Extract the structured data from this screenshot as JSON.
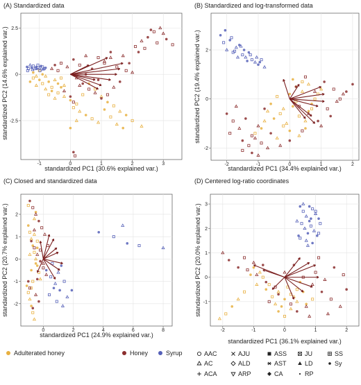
{
  "chart_data": [
    {
      "type": "scatter",
      "title": "(A) Standardized data",
      "xlabel": "standardized PC1 (30.6% explained var.)",
      "ylabel": "standardized PC2 (14.6% explained var.)",
      "xlim": [
        -1.6,
        3.6
      ],
      "ylim": [
        -4.6,
        3.3
      ],
      "xticks": [
        -1,
        0,
        1,
        2,
        3
      ],
      "yticks": [
        -2.5,
        0.0,
        2.5
      ],
      "grid": true,
      "series": [
        {
          "name": "Adulterated honey",
          "color": "#E8B040",
          "x": [
            -1.3,
            -1.2,
            -1.1,
            -1.0,
            -0.9,
            -0.8,
            -0.7,
            -0.6,
            -0.5,
            -0.4,
            -0.3,
            -0.2,
            -1.2,
            -1.0,
            -0.8,
            -0.6,
            -0.4,
            -0.2,
            0.0,
            0.2,
            -1.1,
            -0.9,
            -0.7,
            -0.5,
            -0.3,
            0.1,
            0.3,
            0.5,
            0.7,
            0.9,
            1.1,
            1.3,
            1.5,
            1.7,
            2.0,
            2.3,
            0.6,
            0.8,
            1.0,
            1.2,
            1.4,
            1.6,
            1.8,
            0.4,
            0.2,
            0.0
          ],
          "y": [
            -0.4,
            -0.2,
            -0.6,
            -0.3,
            -0.5,
            -0.1,
            -0.4,
            -0.7,
            -0.3,
            -0.5,
            -0.2,
            -0.6,
            0.1,
            0.2,
            -0.8,
            -0.9,
            -1.0,
            -1.2,
            -1.4,
            -1.6,
            -0.1,
            0.0,
            -1.1,
            -1.3,
            -0.7,
            -1.8,
            -2.0,
            -2.2,
            -2.4,
            -2.6,
            -1.9,
            -2.3,
            -2.7,
            -2.9,
            -2.5,
            -2.8,
            -0.5,
            -0.8,
            -1.2,
            -1.5,
            -1.7,
            -2.0,
            -2.2,
            -1.1,
            -2.5,
            -2.9
          ]
        },
        {
          "name": "Honey",
          "color": "#8B2E2E",
          "x": [
            -0.5,
            -0.3,
            -0.1,
            0.1,
            0.3,
            0.5,
            0.7,
            0.9,
            1.1,
            1.3,
            1.5,
            1.7,
            1.9,
            2.1,
            2.3,
            2.5,
            2.7,
            2.9,
            3.1,
            3.3,
            0.2,
            0.4,
            0.6,
            0.8,
            1.0,
            1.2,
            1.4,
            1.6,
            1.8,
            2.0,
            2.2,
            2.4,
            -0.2,
            0.0,
            0.1,
            0.3,
            0.5,
            -0.4,
            -0.6,
            0.9,
            1.1,
            1.3,
            2.6,
            2.8,
            3.0,
            0.1,
            0.15
          ],
          "y": [
            0.5,
            0.6,
            0.4,
            0.8,
            0.5,
            1.0,
            0.3,
            0.9,
            0.7,
            1.2,
            0.4,
            1.0,
            0.6,
            1.5,
            1.8,
            2.0,
            2.3,
            2.5,
            1.9,
            1.6,
            -0.2,
            -0.5,
            -0.8,
            -1.0,
            -1.3,
            -1.1,
            -0.7,
            -0.4,
            0.2,
            0.1,
            1.2,
            1.4,
            -0.9,
            -1.2,
            -1.5,
            -0.6,
            0.0,
            0.2,
            0.3,
            -0.3,
            0.6,
            0.9,
            2.4,
            1.7,
            2.2,
            -4.2,
            -4.4
          ]
        },
        {
          "name": "Syrup",
          "color": "#5560B8",
          "x": [
            -1.4,
            -1.35,
            -1.3,
            -1.25,
            -1.2,
            -1.15,
            -1.1,
            -1.05,
            -1.0,
            -0.95,
            -0.9,
            -0.85,
            -0.8,
            -1.38,
            -1.22,
            -1.08,
            -0.98,
            -0.88
          ],
          "y": [
            0.4,
            0.3,
            0.5,
            0.35,
            0.45,
            0.3,
            0.4,
            0.5,
            0.35,
            0.45,
            0.4,
            0.3,
            0.35,
            0.2,
            0.25,
            0.3,
            0.2,
            0.28
          ]
        }
      ],
      "loadings": {
        "x": [
          1.7,
          1.6,
          1.5,
          1.3,
          1.0,
          0.8,
          1.2,
          0.6,
          0.9
        ],
        "y": [
          0.6,
          0.3,
          0.0,
          -0.3,
          -0.6,
          -0.3,
          0.9,
          0.5,
          -0.8
        ]
      }
    },
    {
      "type": "scatter",
      "title": "(B) Standardized and log-transformed data",
      "xlabel": "standardized PC1 (34.4% explained var.)",
      "ylabel": "standardized PC2 (19.4% explained var.)",
      "xlim": [
        -2.5,
        2.2
      ],
      "ylim": [
        -2.5,
        3.5
      ],
      "xticks": [
        -2,
        -1,
        0,
        1,
        2
      ],
      "yticks": [
        -2,
        0,
        2
      ],
      "grid": true,
      "series": [
        {
          "name": "Adulterated honey",
          "color": "#E8B040",
          "x": [
            -0.6,
            -0.4,
            -0.2,
            0.0,
            0.2,
            0.4,
            0.6,
            0.8,
            1.0,
            -0.5,
            -0.3,
            -0.1,
            0.1,
            0.3,
            0.5,
            0.7,
            0.9,
            -0.7,
            -0.9,
            -1.1,
            -0.8,
            0.2,
            0.4,
            0.6,
            0.0,
            -0.2,
            0.3,
            0.5,
            0.7,
            -0.4,
            0.1
          ],
          "y": [
            -0.2,
            0.1,
            -0.4,
            0.2,
            -0.1,
            0.3,
            -0.5,
            0.0,
            0.4,
            -0.8,
            -0.6,
            -1.0,
            -0.3,
            -0.7,
            -0.9,
            -0.2,
            0.2,
            -0.5,
            -1.2,
            -1.4,
            -0.9,
            0.5,
            0.7,
            0.6,
            -1.3,
            -1.1,
            -1.5,
            -1.2,
            -0.4,
            -1.6,
            0.8
          ]
        },
        {
          "name": "Honey",
          "color": "#8B2E2E",
          "x": [
            -2.0,
            -1.8,
            -1.6,
            -1.4,
            -1.2,
            -1.0,
            -0.8,
            -1.9,
            -1.7,
            -1.5,
            -1.3,
            -1.1,
            0.2,
            0.5,
            0.8,
            1.1,
            1.4,
            1.7,
            2.0,
            0.3,
            0.6,
            0.9,
            1.2,
            1.5,
            1.8,
            -0.9,
            -0.7,
            -1.2,
            -1.5,
            -0.3,
            0.0,
            0.4,
            1.0,
            1.3,
            1.6,
            -1.0,
            -0.6
          ],
          "y": [
            -0.6,
            -0.9,
            -1.2,
            -0.8,
            -1.5,
            -1.1,
            -0.4,
            -1.4,
            -0.3,
            -1.7,
            -1.9,
            -1.6,
            0.5,
            0.9,
            0.3,
            0.7,
            0.4,
            0.2,
            0.6,
            -0.3,
            -0.6,
            -0.9,
            -0.4,
            -0.1,
            0.3,
            -1.8,
            -2.0,
            -2.2,
            -2.1,
            -1.9,
            -1.7,
            -1.3,
            -1.1,
            -0.7,
            0.0,
            -2.3,
            -1.4
          ]
        },
        {
          "name": "Syrup",
          "color": "#5560B8",
          "x": [
            -2.2,
            -2.1,
            -2.0,
            -1.9,
            -1.8,
            -1.7,
            -1.6,
            -1.5,
            -1.4,
            -1.3,
            -1.2,
            -1.1,
            -1.0,
            -0.9,
            -0.8,
            -2.05,
            -1.85,
            -1.65,
            -1.45,
            -1.25,
            -1.05,
            -0.95,
            -1.75,
            -1.55,
            -1.35
          ],
          "y": [
            2.6,
            2.3,
            2.0,
            2.4,
            1.9,
            2.1,
            2.2,
            1.8,
            1.7,
            1.9,
            1.6,
            1.5,
            1.4,
            1.6,
            1.3,
            2.8,
            2.5,
            1.7,
            2.0,
            1.8,
            1.7,
            1.5,
            1.95,
            2.15,
            1.55
          ]
        }
      ],
      "loadings": {
        "x": [
          1.0,
          1.1,
          0.9,
          0.7,
          0.5,
          0.3,
          -0.2,
          0.8,
          1.1
        ],
        "y": [
          0.5,
          0.2,
          -0.3,
          -0.7,
          -0.8,
          0.6,
          0.8,
          -1.0,
          -0.1
        ]
      }
    },
    {
      "type": "scatter",
      "title": "(C) Closed and standardized data",
      "xlabel": "standardized PC1 (24.9% explained var.)",
      "ylabel": "standardized PC2 (20.7% explained var.)",
      "xlim": [
        -1.5,
        8.6
      ],
      "ylim": [
        -3.0,
        2.9
      ],
      "xticks": [
        0,
        2,
        4,
        6,
        8
      ],
      "yticks": [
        -2,
        -1,
        0,
        1,
        2
      ],
      "grid": true,
      "series": [
        {
          "name": "Adulterated honey",
          "color": "#E8B040",
          "x": [
            -1.0,
            -0.9,
            -0.8,
            -0.7,
            -0.6,
            -0.5,
            -0.4,
            -0.3,
            -0.2,
            -1.1,
            -1.0,
            -0.9,
            -0.8,
            -0.7,
            -0.6,
            -0.5,
            -0.4,
            -0.9,
            -0.8,
            -0.7,
            -0.6,
            -0.5,
            -1.0,
            -0.6,
            -0.4,
            -0.8
          ],
          "y": [
            1.5,
            1.2,
            0.9,
            0.6,
            0.3,
            0.0,
            -0.3,
            -0.6,
            -0.9,
            -1.2,
            -1.5,
            -1.8,
            -2.1,
            -2.4,
            1.8,
            2.1,
            0.8,
            0.2,
            -0.5,
            -1.0,
            1.1,
            -0.2,
            2.4,
            -2.7,
            0.5,
            -1.3
          ]
        },
        {
          "name": "Honey",
          "color": "#8B2E2E",
          "x": [
            -0.9,
            -0.7,
            -0.5,
            -0.3,
            -0.1,
            0.1,
            -0.8,
            -0.6,
            -0.4,
            -0.2,
            0.0,
            0.2,
            -1.0,
            -0.9,
            -0.5,
            -0.3,
            0.3,
            -0.6,
            -0.4,
            -0.2,
            0.0,
            -0.7
          ],
          "y": [
            2.6,
            2.3,
            2.0,
            1.7,
            1.4,
            1.1,
            0.8,
            0.5,
            0.2,
            -0.1,
            -0.4,
            -0.7,
            -1.0,
            -1.3,
            -1.6,
            -1.9,
            0.6,
            1.3,
            -0.9,
            0.4,
            -0.2,
            -2.2
          ]
        },
        {
          "name": "Syrup",
          "color": "#5560B8",
          "x": [
            0.2,
            0.5,
            0.8,
            1.1,
            1.4,
            1.0,
            0.7,
            0.4,
            1.6,
            1.9,
            0.9,
            1.3,
            3.7,
            4.7,
            5.3,
            5.6,
            6.4,
            8.0,
            1.2,
            0.6
          ],
          "y": [
            -0.5,
            -0.8,
            -1.1,
            -1.4,
            -1.0,
            -0.6,
            -1.3,
            -1.6,
            -1.7,
            -1.4,
            -1.9,
            -2.1,
            1.2,
            1.0,
            1.5,
            0.7,
            0.6,
            0.5,
            -0.3,
            -0.2
          ]
        }
      ],
      "loadings": {
        "x": [
          1.0,
          1.3,
          1.1,
          0.9,
          0.7,
          0.4,
          -0.2,
          -0.4,
          0.8
        ],
        "y": [
          0.3,
          -0.2,
          -0.5,
          0.5,
          0.9,
          1.1,
          0.8,
          -0.6,
          -0.9
        ]
      }
    },
    {
      "type": "scatter",
      "title": "(D) Centered log-ratio coordinates",
      "xlabel": "standardized PC1 (36.1% explained var.)",
      "ylabel": "standardized PC2 (20.0% explained var.)",
      "xlim": [
        -2.4,
        2.4
      ],
      "ylim": [
        -2.0,
        3.4
      ],
      "xticks": [
        -2,
        -1,
        0,
        1,
        2
      ],
      "yticks": [
        -1,
        0,
        1,
        2,
        3
      ],
      "grid": true,
      "series": [
        {
          "name": "Adulterated honey",
          "color": "#E8B040",
          "x": [
            -0.6,
            -0.4,
            -0.2,
            0.0,
            0.2,
            0.4,
            0.6,
            -0.5,
            -0.3,
            -0.1,
            0.1,
            0.3,
            0.5,
            -0.7,
            -0.9,
            -1.1,
            -1.3,
            -1.5,
            -1.7,
            -1.9,
            -2.1,
            0.7,
            0.9,
            0.2,
            -0.2,
            0.4,
            -0.8,
            -1.0,
            0.0
          ],
          "y": [
            -0.5,
            -0.8,
            -0.6,
            -0.9,
            -0.7,
            -1.0,
            -0.6,
            -0.3,
            -1.1,
            -1.2,
            -0.4,
            -0.8,
            -0.2,
            0.0,
            -0.3,
            0.1,
            -0.6,
            -0.9,
            -1.2,
            -1.5,
            -1.7,
            -1.1,
            -0.9,
            -1.3,
            -1.4,
            -0.5,
            0.2,
            0.4,
            -1.6
          ]
        },
        {
          "name": "Honey",
          "color": "#8B2E2E",
          "x": [
            -1.5,
            -1.2,
            -0.9,
            -0.6,
            -0.3,
            0.0,
            0.3,
            0.6,
            0.9,
            1.2,
            1.5,
            1.8,
            2.0,
            -1.3,
            -1.0,
            -0.7,
            1.0,
            1.3,
            1.6,
            1.9,
            0.7,
            0.4,
            -0.5,
            -2.0,
            -1.8,
            1.1,
            1.4,
            -0.2,
            0.2,
            0.8
          ],
          "y": [
            0.4,
            0.3,
            0.1,
            -0.2,
            -0.4,
            0.2,
            0.5,
            0.0,
            -0.3,
            -0.6,
            -0.9,
            -1.2,
            -0.5,
            0.8,
            0.6,
            0.5,
            0.2,
            -0.1,
            0.4,
            0.1,
            -1.2,
            -1.4,
            -1.0,
            1.0,
            0.7,
            0.8,
            -1.5,
            -0.7,
            -1.1,
            -1.6
          ]
        },
        {
          "name": "Syrup",
          "color": "#5560B8",
          "x": [
            0.5,
            0.6,
            0.7,
            0.8,
            0.9,
            1.0,
            1.1,
            0.55,
            0.65,
            0.75,
            0.85,
            0.95,
            1.05,
            0.5,
            0.7,
            0.9,
            1.1,
            0.6,
            0.8,
            1.0,
            0.4,
            0.45,
            1.15,
            0.75,
            0.85
          ],
          "y": [
            2.9,
            2.7,
            2.5,
            2.3,
            2.8,
            2.6,
            2.4,
            2.2,
            2.0,
            1.8,
            2.1,
            1.9,
            1.7,
            1.6,
            1.5,
            1.4,
            1.8,
            3.0,
            2.9,
            2.7,
            2.3,
            1.7,
            2.2,
            1.3,
            2.4
          ]
        }
      ],
      "loadings": {
        "x": [
          1.0,
          1.1,
          0.9,
          0.6,
          0.3,
          -0.4,
          -0.7,
          -1.0,
          0.5,
          0.8
        ],
        "y": [
          0.5,
          0.0,
          -0.4,
          -0.6,
          -0.9,
          -0.5,
          0.3,
          0.5,
          0.8,
          0.6
        ]
      }
    }
  ],
  "legend": {
    "groups": [
      {
        "label": "Adulterated honey",
        "color": "#E8B040"
      },
      {
        "label": "Honey",
        "color": "#8B2E2E"
      },
      {
        "label": "Syrup",
        "color": "#5560B8"
      }
    ],
    "shapes": [
      {
        "label": "AAC",
        "shape": "circle-open"
      },
      {
        "label": "AJU",
        "shape": "x"
      },
      {
        "label": "ASS",
        "shape": "square-filled"
      },
      {
        "label": "JU",
        "shape": "square-x"
      },
      {
        "label": "SS",
        "shape": "square-star"
      },
      {
        "label": "AC",
        "shape": "triangle-open"
      },
      {
        "label": "ALD",
        "shape": "diamond-open"
      },
      {
        "label": "AST",
        "shape": "asterisk"
      },
      {
        "label": "LD",
        "shape": "triangle-filled"
      },
      {
        "label": "Sy",
        "shape": "dot"
      },
      {
        "label": "ACA",
        "shape": "plus"
      },
      {
        "label": "ARP",
        "shape": "triangle-down-open"
      },
      {
        "label": "CA",
        "shape": "diamond-plus"
      },
      {
        "label": "RP",
        "shape": "dot-small"
      }
    ]
  }
}
